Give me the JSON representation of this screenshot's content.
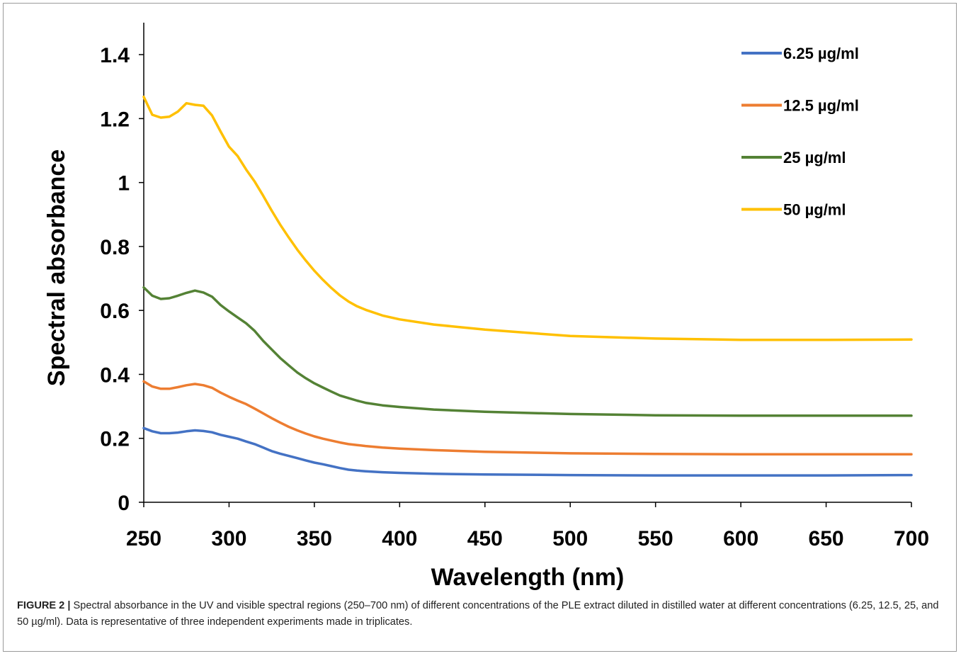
{
  "chart_data": {
    "type": "line",
    "xlabel": "Wavelength (nm)",
    "ylabel": "Spectral absorbance",
    "xlim": [
      250,
      700
    ],
    "ylim": [
      0,
      1.5
    ],
    "xticks": [
      250,
      300,
      350,
      400,
      450,
      500,
      550,
      600,
      650,
      700
    ],
    "yticks": [
      0,
      0.2,
      0.4,
      0.6,
      0.8,
      1,
      1.2,
      1.4
    ],
    "ytick_labels": [
      "0",
      "0.2",
      "0.4",
      "0.6",
      "0.8",
      "1",
      "1.2",
      "1.4"
    ],
    "grid": false,
    "legend_position": "top-right",
    "series": [
      {
        "name": "6.25 µg/ml",
        "color": "#4472C4",
        "x": [
          250,
          255,
          260,
          265,
          270,
          275,
          280,
          285,
          290,
          295,
          300,
          305,
          310,
          315,
          320,
          325,
          330,
          335,
          340,
          345,
          350,
          355,
          360,
          365,
          370,
          375,
          380,
          390,
          400,
          420,
          450,
          500,
          550,
          600,
          650,
          700
        ],
        "y": [
          0.232,
          0.222,
          0.216,
          0.216,
          0.218,
          0.222,
          0.225,
          0.223,
          0.219,
          0.211,
          0.205,
          0.199,
          0.19,
          0.182,
          0.171,
          0.16,
          0.152,
          0.145,
          0.138,
          0.131,
          0.124,
          0.119,
          0.113,
          0.107,
          0.102,
          0.099,
          0.097,
          0.094,
          0.092,
          0.089,
          0.087,
          0.085,
          0.084,
          0.084,
          0.084,
          0.085
        ]
      },
      {
        "name": "12.5 µg/ml",
        "color": "#ED7D31",
        "x": [
          250,
          255,
          260,
          265,
          270,
          275,
          280,
          285,
          290,
          295,
          300,
          305,
          310,
          315,
          320,
          325,
          330,
          335,
          340,
          345,
          350,
          355,
          360,
          365,
          370,
          375,
          380,
          390,
          400,
          420,
          450,
          500,
          550,
          600,
          650,
          700
        ],
        "y": [
          0.378,
          0.362,
          0.355,
          0.355,
          0.36,
          0.366,
          0.37,
          0.366,
          0.358,
          0.343,
          0.33,
          0.318,
          0.307,
          0.293,
          0.278,
          0.263,
          0.249,
          0.236,
          0.225,
          0.215,
          0.206,
          0.199,
          0.193,
          0.187,
          0.182,
          0.179,
          0.176,
          0.171,
          0.168,
          0.163,
          0.158,
          0.153,
          0.151,
          0.15,
          0.15,
          0.15
        ]
      },
      {
        "name": "25 µg/ml",
        "color": "#548235",
        "x": [
          250,
          255,
          260,
          265,
          270,
          275,
          280,
          285,
          290,
          295,
          300,
          305,
          310,
          315,
          320,
          325,
          330,
          335,
          340,
          345,
          350,
          355,
          360,
          365,
          370,
          375,
          380,
          390,
          400,
          420,
          450,
          500,
          550,
          600,
          650,
          700
        ],
        "y": [
          0.672,
          0.646,
          0.636,
          0.638,
          0.646,
          0.655,
          0.662,
          0.656,
          0.643,
          0.617,
          0.597,
          0.578,
          0.56,
          0.536,
          0.505,
          0.478,
          0.451,
          0.428,
          0.406,
          0.388,
          0.372,
          0.359,
          0.346,
          0.334,
          0.326,
          0.318,
          0.311,
          0.303,
          0.298,
          0.29,
          0.283,
          0.276,
          0.272,
          0.271,
          0.271,
          0.271
        ]
      },
      {
        "name": "50 µg/ml",
        "color": "#FFC000",
        "x": [
          250,
          255,
          260,
          265,
          270,
          275,
          280,
          285,
          290,
          295,
          300,
          305,
          310,
          315,
          320,
          325,
          330,
          335,
          340,
          345,
          350,
          355,
          360,
          365,
          370,
          375,
          380,
          390,
          400,
          420,
          450,
          500,
          550,
          600,
          650,
          700
        ],
        "y": [
          1.268,
          1.212,
          1.203,
          1.206,
          1.222,
          1.248,
          1.243,
          1.24,
          1.21,
          1.16,
          1.112,
          1.083,
          1.041,
          1.003,
          0.959,
          0.912,
          0.868,
          0.828,
          0.79,
          0.756,
          0.724,
          0.696,
          0.67,
          0.647,
          0.628,
          0.613,
          0.602,
          0.584,
          0.572,
          0.556,
          0.54,
          0.52,
          0.512,
          0.508,
          0.508,
          0.509
        ]
      }
    ]
  },
  "caption": {
    "label": "FIGURE 2 |",
    "text": " Spectral absorbance in the UV and visible spectral regions (250–700 nm) of different concentrations of the PLE extract diluted in distilled water at different concentrations (6.25, 12.5, 25, and 50 µg/ml). Data is representative of three independent experiments made in triplicates."
  }
}
